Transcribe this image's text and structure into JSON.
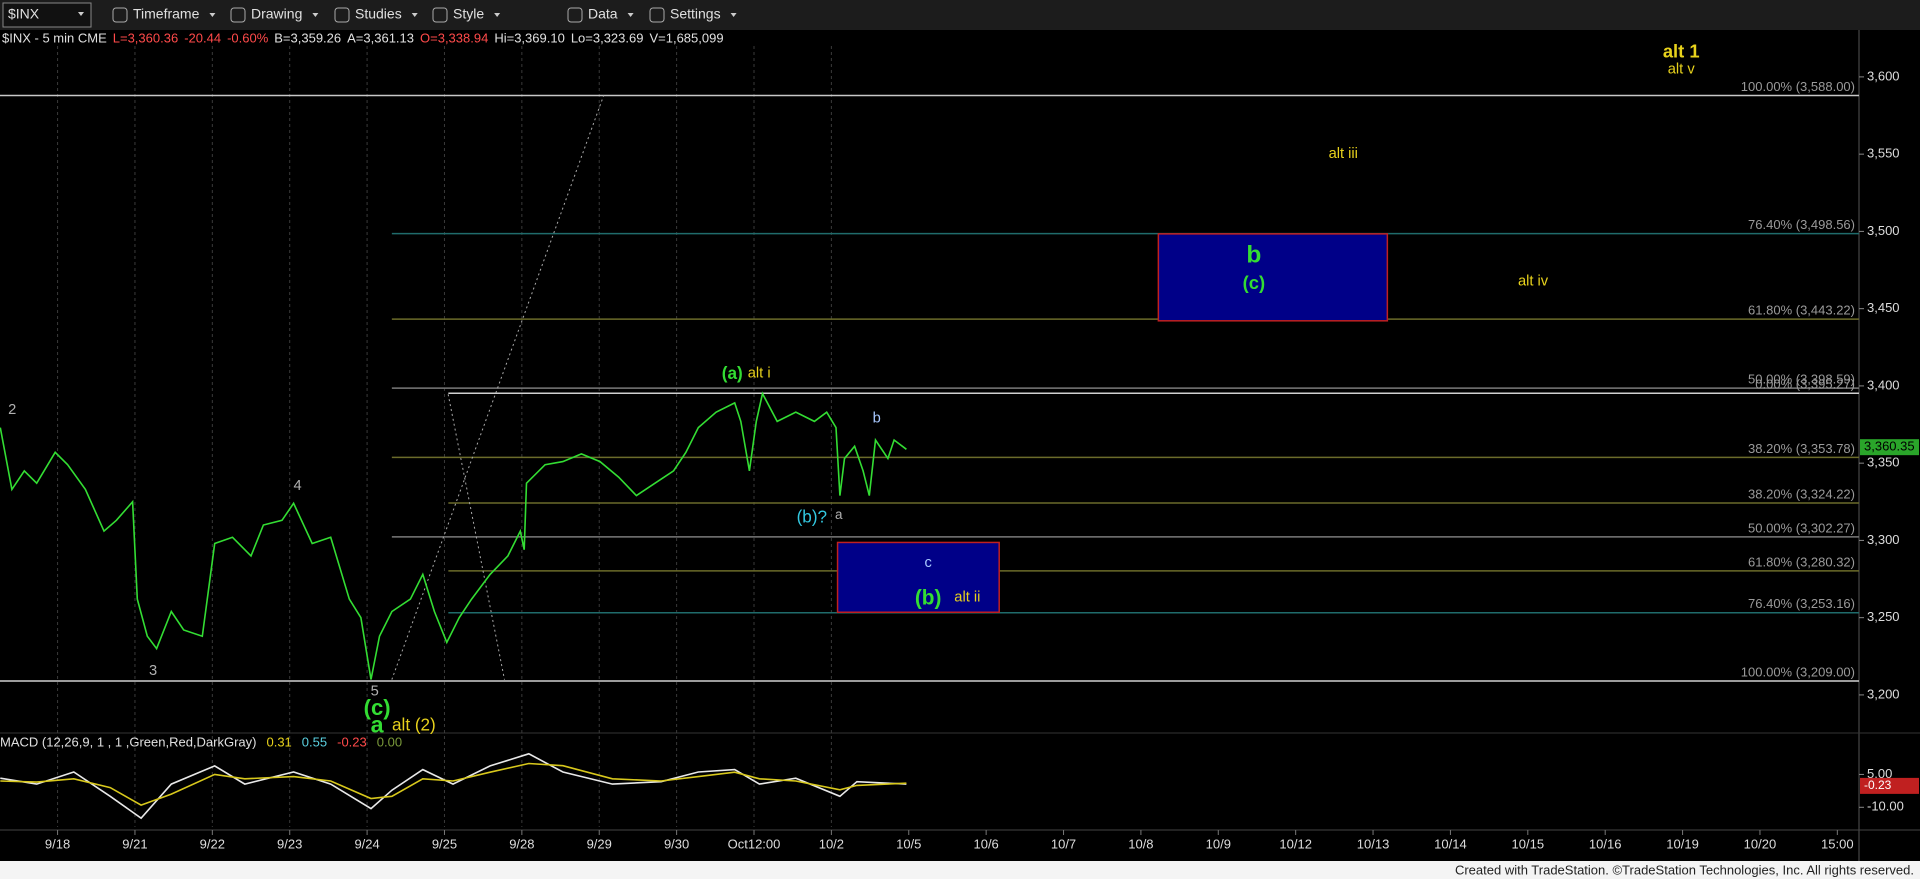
{
  "toolbar": {
    "symbol": "$INX",
    "items": [
      "Timeframe",
      "Drawing",
      "Studies",
      "Style",
      "Data",
      "Settings"
    ]
  },
  "info": [
    {
      "text": "$INX - 5 min CME",
      "color": "#e0e0e0"
    },
    {
      "text": "L=3,360.36",
      "color": "#ff4a4a"
    },
    {
      "text": "-20.44",
      "color": "#ff4a4a"
    },
    {
      "text": "-0.60%",
      "color": "#ff4a4a"
    },
    {
      "text": "B=3,359.26",
      "color": "#e0e0e0"
    },
    {
      "text": "A=3,361.13",
      "color": "#e0e0e0"
    },
    {
      "text": "O=3,338.94",
      "color": "#ff4a4a"
    },
    {
      "text": "Hi=3,369.10",
      "color": "#e0e0e0"
    },
    {
      "text": "Lo=3,323.69",
      "color": "#e0e0e0"
    },
    {
      "text": "V=1,685,099",
      "color": "#e0e0e0"
    }
  ],
  "footer": "Created with TradeStation. ©TradeStation Technologies, Inc. All rights reserved.",
  "chart_data": [
    {
      "type": "line",
      "categories": [
        "9/18",
        "9/21",
        "9/22",
        "9/23",
        "9/24",
        "9/25",
        "9/28",
        "9/29",
        "9/30",
        "Oct12:00",
        "10/2",
        "10/5",
        "10/6",
        "10/7",
        "10/8",
        "10/9",
        "10/12",
        "10/13",
        "10/14",
        "10/15",
        "10/16",
        "10/19",
        "10/20",
        "15:00"
      ],
      "xlim": [
        -0.744,
        23.28
      ],
      "ylim": [
        3176,
        3620
      ],
      "yticks": [
        {
          "value": 3200,
          "label": "3,200"
        },
        {
          "value": 3250,
          "label": "3,250"
        },
        {
          "value": 3300,
          "label": "3,300"
        },
        {
          "value": 3350,
          "label": "3,350"
        },
        {
          "value": 3400,
          "label": "3,400"
        },
        {
          "value": 3450,
          "label": "3,450"
        },
        {
          "value": 3500,
          "label": "3,500"
        },
        {
          "value": 3550,
          "label": "3,550"
        },
        {
          "value": 3600,
          "label": "3,600"
        }
      ],
      "series": [
        {
          "color": "#33dd33",
          "x": [
            -0.74,
            -0.59,
            -0.43,
            -0.27,
            -0.03,
            0.13,
            0.36,
            0.6,
            0.76,
            0.97,
            1.03,
            1.16,
            1.28,
            1.47,
            1.63,
            1.87,
            2.03,
            2.26,
            2.5,
            2.66,
            2.9,
            3.05,
            3.29,
            3.53,
            3.77,
            3.92,
            4.05,
            4.16,
            4.32,
            4.56,
            4.72,
            4.87,
            5.03,
            5.19,
            5.35,
            5.59,
            5.82,
            5.98,
            6.03,
            6.06,
            6.3,
            6.53,
            6.77,
            7.01,
            7.25,
            7.48,
            7.72,
            7.96,
            8.12,
            8.28,
            8.51,
            8.75,
            8.83,
            8.94,
            9.03,
            9.11,
            9.3,
            9.54,
            9.78,
            9.94,
            10.06,
            10.11,
            10.17,
            10.3,
            10.41,
            10.49,
            10.57,
            10.73,
            10.81,
            10.97
          ],
          "values": [
            3373,
            3333,
            3345,
            3337,
            3357,
            3349,
            3333,
            3306,
            3313,
            3325,
            3262,
            3238,
            3230,
            3254,
            3242,
            3238,
            3298,
            3302,
            3290,
            3310,
            3313,
            3324,
            3298,
            3302,
            3262,
            3250,
            3210,
            3238,
            3254,
            3262,
            3278,
            3254,
            3234,
            3250,
            3262,
            3278,
            3290,
            3306,
            3294,
            3337,
            3349,
            3351,
            3356,
            3351,
            3341,
            3329,
            3337,
            3345,
            3357,
            3373,
            3383,
            3389,
            3377,
            3345,
            3377,
            3395,
            3377,
            3383,
            3377,
            3383,
            3373,
            3329,
            3353,
            3361,
            3345,
            3329,
            3365,
            3353,
            3365,
            3359
          ]
        }
      ],
      "fib_levels": [
        {
          "value": 3588,
          "label": "100.00% (3,588.00)",
          "color": "#c8c8c8"
        },
        {
          "value": 3498.56,
          "label": "76.40% (3,498.56)",
          "color": "#1f6b6b"
        },
        {
          "value": 3443.22,
          "label": "61.80% (3,443.22)",
          "color": "#6b6b2a"
        },
        {
          "value": 3398.59,
          "label": "50.00% (3,398.59)",
          "color": "#7a7a7a"
        },
        {
          "value": 3395.27,
          "label": "0.00% (3,395.27)",
          "color": "#d0d0d0"
        },
        {
          "value": 3353.78,
          "label": "38.20% (3,353.78)",
          "color": "#6b6b2a"
        },
        {
          "value": 3324.22,
          "label": "38.20% (3,324.22)",
          "color": "#6b6b2a"
        },
        {
          "value": 3302.27,
          "label": "50.00% (3,302.27)",
          "color": "#7a7a7a"
        },
        {
          "value": 3280.32,
          "label": "61.80% (3,280.32)",
          "color": "#6b6b2a"
        },
        {
          "value": 3253.16,
          "label": "76.40% (3,253.16)",
          "color": "#1f6b6b"
        },
        {
          "value": 3209,
          "label": "100.00% (3,209.00)",
          "color": "#d0d0d0"
        }
      ],
      "annotations": [
        {
          "text": "2",
          "color": "#b0b0b0"
        },
        {
          "text": "4",
          "color": "#b0b0b0"
        },
        {
          "text": "3",
          "color": "#b0b0b0"
        },
        {
          "text": "5",
          "color": "#b0b0b0"
        },
        {
          "text": "(c)",
          "color": "#33dd33"
        },
        {
          "text": "a",
          "color": "#33dd33"
        },
        {
          "text": "alt (2)",
          "color": "#e8d21c"
        },
        {
          "text": "(a)",
          "color": "#33dd33"
        },
        {
          "text": "alt i",
          "color": "#e8d21c"
        },
        {
          "text": "b",
          "color": "#a8c8ff"
        },
        {
          "text": "(b)?",
          "color": "#33c8e0"
        },
        {
          "text": "a",
          "color": "#b0b0b0"
        },
        {
          "text": "c",
          "color": "#a8c8ff"
        },
        {
          "text": "(b)",
          "color": "#33dd33"
        },
        {
          "text": "alt ii",
          "color": "#e8d21c"
        },
        {
          "text": "b",
          "color": "#33dd33"
        },
        {
          "text": "(c)",
          "color": "#33dd33"
        },
        {
          "text": "alt iii",
          "color": "#e8d21c"
        },
        {
          "text": "alt iv",
          "color": "#e8d21c"
        },
        {
          "text": "alt 1",
          "color": "#e8d21c"
        },
        {
          "text": "alt v",
          "color": "#e8d21c"
        }
      ],
      "last_price": {
        "value": 3360.35,
        "label": "3,360.35"
      }
    },
    {
      "type": "line",
      "title": "MACD (12,26,9, 1 , 1 ,Green,Red,DarkGray)",
      "legend_values": [
        {
          "value": 0.31,
          "label": "0.31",
          "color": "#e8d21c"
        },
        {
          "value": 0.55,
          "label": "0.55",
          "color": "#5ad0e0"
        },
        {
          "value": -0.23,
          "label": "-0.23",
          "color": "#ff4a4a"
        },
        {
          "value": 0,
          "label": "0.00",
          "color": "#7a9a3a"
        }
      ],
      "xlim": [
        -0.744,
        23.28
      ],
      "ylim": [
        -19,
        23
      ],
      "yticks": [
        {
          "value": 5,
          "label": "5.00"
        },
        {
          "value": -10,
          "label": "-10.00"
        }
      ],
      "series": [
        {
          "color": "#e8e8e8",
          "x": [
            -0.74,
            -0.27,
            0.21,
            0.68,
            1.08,
            1.47,
            2.03,
            2.42,
            3.05,
            3.53,
            4.05,
            4.32,
            4.72,
            5.11,
            5.59,
            6.09,
            6.53,
            7.17,
            7.8,
            8.28,
            8.75,
            9.07,
            9.54,
            10.11,
            10.33,
            10.97
          ],
          "values": [
            3.3,
            0.6,
            6.1,
            -5,
            -15,
            0.6,
            8.9,
            0.6,
            6.1,
            0.6,
            -10.6,
            -2.2,
            7.2,
            0.6,
            8.9,
            14.4,
            6.1,
            0.6,
            1.7,
            6.1,
            7.2,
            0.6,
            3.3,
            -5,
            1.7,
            0.6
          ]
        },
        {
          "color": "#d8c81c",
          "x": [
            -0.74,
            -0.27,
            0.21,
            0.68,
            1.08,
            1.47,
            2.03,
            2.42,
            3.05,
            3.53,
            4.05,
            4.32,
            4.72,
            5.11,
            5.59,
            6.09,
            6.53,
            7.17,
            7.8,
            8.28,
            8.75,
            9.07,
            9.54,
            10.11,
            10.33,
            10.97
          ],
          "values": [
            2,
            1.5,
            3,
            -1,
            -9,
            -4,
            5,
            3,
            4,
            2,
            -6,
            -5,
            3,
            2,
            6,
            10,
            9,
            3,
            2,
            4,
            6,
            3,
            2,
            -2,
            0,
            1
          ]
        }
      ],
      "last": {
        "value": -0.23,
        "label": "-0.23"
      }
    }
  ]
}
